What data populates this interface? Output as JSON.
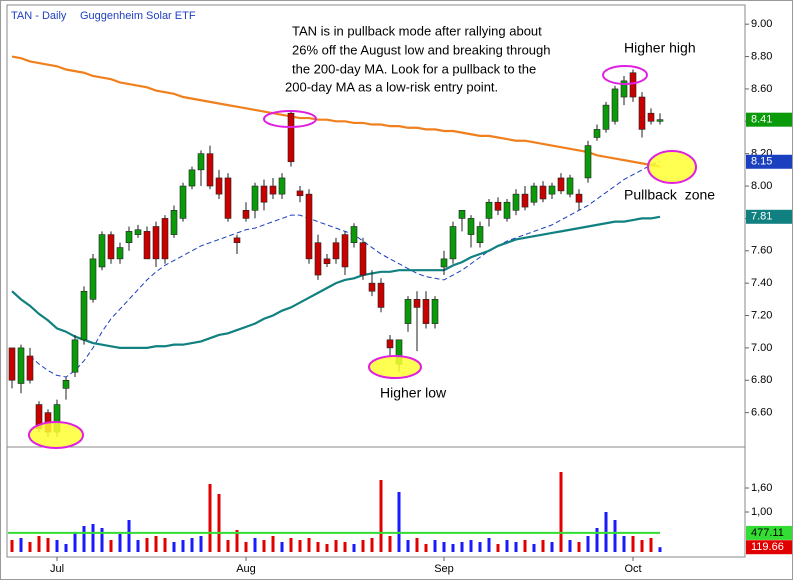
{
  "chart_data": {
    "type": "candlestick",
    "title": "TAN - Daily",
    "subtitle": "Guggenheim Solar ETF",
    "annotation": [
      "TAN is in pullback mode after rallying about",
      "26% off the August low and breaking through",
      "the 200-day MA.  Look for a pullback to the",
      "200-day MA as a low-risk entry point."
    ],
    "callouts": [
      "Higher high",
      "Higher low",
      "Pullback  zone"
    ],
    "categories": [
      null,
      null,
      null,
      null,
      null,
      "Jul",
      null,
      null,
      null,
      null,
      null,
      null,
      null,
      null,
      null,
      null,
      null,
      null,
      null,
      null,
      null,
      null,
      null,
      null,
      null,
      null,
      "Aug",
      null,
      null,
      null,
      null,
      null,
      null,
      null,
      null,
      null,
      null,
      null,
      null,
      null,
      null,
      null,
      null,
      null,
      null,
      null,
      null,
      null,
      "Sep",
      null,
      null,
      null,
      null,
      null,
      null,
      null,
      null,
      null,
      null,
      null,
      null,
      null,
      null,
      null,
      null,
      null,
      null,
      null,
      null,
      "Oct",
      null,
      null,
      null
    ],
    "open": [
      7.0,
      6.78,
      6.95,
      6.65,
      6.6,
      6.48,
      6.75,
      6.85,
      7.05,
      7.3,
      7.5,
      7.7,
      7.55,
      7.65,
      7.7,
      7.72,
      7.75,
      7.8,
      7.7,
      7.8,
      8.0,
      8.1,
      8.2,
      8.05,
      8.05,
      7.68,
      7.85,
      7.85,
      8.0,
      8.0,
      7.95,
      8.45,
      7.97,
      7.95,
      7.65,
      7.55,
      7.65,
      7.7,
      7.65,
      7.65,
      7.4,
      7.4,
      7.05,
      6.9,
      7.15,
      7.3,
      7.3,
      7.15,
      7.5,
      7.55,
      7.8,
      7.7,
      7.65,
      7.8,
      7.9,
      7.8,
      7.85,
      7.95,
      7.9,
      8.0,
      7.95,
      8.05,
      7.95,
      7.95,
      8.05,
      8.3,
      8.35,
      8.4,
      8.55,
      8.7,
      8.55,
      8.45,
      8.4
    ],
    "high": [
      7.0,
      7.02,
      7.0,
      6.67,
      6.62,
      6.68,
      6.82,
      7.08,
      7.38,
      7.58,
      7.72,
      7.72,
      7.65,
      7.75,
      7.76,
      7.75,
      7.78,
      7.82,
      7.88,
      8.02,
      8.12,
      8.22,
      8.25,
      8.1,
      8.08,
      7.7,
      7.9,
      8.02,
      8.04,
      8.05,
      8.08,
      8.47,
      8.0,
      7.98,
      7.7,
      7.58,
      7.68,
      7.72,
      7.77,
      7.68,
      7.48,
      7.43,
      7.08,
      7.05,
      7.32,
      7.35,
      7.35,
      7.32,
      7.6,
      7.78,
      7.85,
      7.82,
      7.78,
      7.92,
      7.93,
      7.92,
      7.98,
      8.0,
      8.02,
      8.03,
      8.02,
      8.08,
      8.07,
      7.98,
      8.28,
      8.38,
      8.52,
      8.62,
      8.68,
      8.72,
      8.58,
      8.48,
      8.45
    ],
    "low": [
      6.75,
      6.72,
      6.78,
      6.48,
      6.45,
      6.45,
      6.68,
      6.82,
      7.02,
      7.28,
      7.48,
      7.52,
      7.52,
      7.6,
      7.68,
      7.55,
      7.5,
      7.52,
      7.68,
      7.78,
      7.98,
      8.0,
      7.98,
      7.92,
      7.78,
      7.58,
      7.78,
      7.8,
      7.85,
      7.92,
      7.92,
      8.12,
      7.9,
      7.52,
      7.42,
      7.5,
      7.52,
      7.45,
      7.62,
      7.42,
      7.32,
      7.22,
      6.95,
      6.85,
      7.1,
      6.98,
      7.12,
      7.12,
      7.45,
      7.52,
      7.72,
      7.62,
      7.62,
      7.75,
      7.82,
      7.78,
      7.82,
      7.85,
      7.88,
      7.9,
      7.92,
      7.95,
      7.93,
      7.85,
      8.02,
      8.28,
      8.33,
      8.38,
      8.5,
      8.52,
      8.3,
      8.38,
      8.38
    ],
    "close": [
      6.8,
      7.0,
      6.8,
      6.5,
      6.48,
      6.65,
      6.8,
      7.05,
      7.35,
      7.55,
      7.7,
      7.55,
      7.62,
      7.72,
      7.73,
      7.55,
      7.55,
      7.55,
      7.85,
      8.0,
      8.1,
      8.2,
      8.0,
      7.95,
      7.8,
      7.65,
      7.8,
      8.0,
      7.9,
      7.95,
      8.05,
      8.15,
      7.94,
      7.55,
      7.45,
      7.52,
      7.55,
      7.5,
      7.75,
      7.45,
      7.35,
      7.25,
      7.0,
      7.05,
      7.3,
      7.25,
      7.15,
      7.3,
      7.55,
      7.75,
      7.85,
      7.8,
      7.75,
      7.9,
      7.85,
      7.9,
      7.95,
      7.87,
      8.0,
      7.92,
      8.0,
      7.97,
      8.05,
      7.9,
      8.25,
      8.35,
      8.5,
      8.6,
      8.65,
      8.55,
      8.35,
      8.4,
      8.41
    ],
    "up_color": "#0a9a0a",
    "down_color": "#c80000",
    "lines": [
      {
        "color": "#f0801e",
        "dash": false,
        "values": [
          8.8,
          8.79,
          8.77,
          8.76,
          8.75,
          8.74,
          8.72,
          8.71,
          8.7,
          8.68,
          8.67,
          8.66,
          8.64,
          8.63,
          8.62,
          8.61,
          8.59,
          8.58,
          8.57,
          8.55,
          8.54,
          8.53,
          8.52,
          8.51,
          8.5,
          8.49,
          8.48,
          8.47,
          8.46,
          8.45,
          8.44,
          8.43,
          8.42,
          8.42,
          8.41,
          8.41,
          8.4,
          8.4,
          8.39,
          8.39,
          8.38,
          8.38,
          8.37,
          8.37,
          8.36,
          8.36,
          8.35,
          8.35,
          8.34,
          8.34,
          8.33,
          8.32,
          8.31,
          8.31,
          8.3,
          8.29,
          8.28,
          8.28,
          8.27,
          8.26,
          8.25,
          8.24,
          8.23,
          8.22,
          8.21,
          8.19,
          8.18,
          8.17,
          8.16,
          8.15,
          8.14,
          8.13,
          8.12
        ]
      },
      {
        "color": "#1a3fbf",
        "dash": true,
        "values": [
          null,
          null,
          6.95,
          6.9,
          6.86,
          6.83,
          6.82,
          6.86,
          6.92,
          7.0,
          7.1,
          7.18,
          7.24,
          7.3,
          7.36,
          7.42,
          7.47,
          7.51,
          7.54,
          7.57,
          7.6,
          7.63,
          7.65,
          7.67,
          7.69,
          7.71,
          7.73,
          7.74,
          7.76,
          7.78,
          7.8,
          7.82,
          7.82,
          7.8,
          7.78,
          7.76,
          7.74,
          7.72,
          7.7,
          7.66,
          7.62,
          7.58,
          7.55,
          7.52,
          7.49,
          7.46,
          7.44,
          7.43,
          7.42,
          7.45,
          7.48,
          7.52,
          7.56,
          7.6,
          7.63,
          7.66,
          7.68,
          7.7,
          7.72,
          7.74,
          7.76,
          7.79,
          7.82,
          7.85,
          7.88,
          7.92,
          7.96,
          8.0,
          8.04,
          8.07,
          8.1,
          8.13,
          8.15
        ]
      },
      {
        "color": "#108080",
        "dash": false,
        "values": [
          7.35,
          7.3,
          7.26,
          7.21,
          7.17,
          7.12,
          7.1,
          7.07,
          7.05,
          7.03,
          7.02,
          7.01,
          7.0,
          7.0,
          7.0,
          7.0,
          7.01,
          7.01,
          7.02,
          7.02,
          7.03,
          7.04,
          7.06,
          7.08,
          7.09,
          7.11,
          7.13,
          7.15,
          7.18,
          7.2,
          7.23,
          7.25,
          7.28,
          7.31,
          7.34,
          7.37,
          7.4,
          7.42,
          7.43,
          7.45,
          7.46,
          7.47,
          7.47,
          7.48,
          7.48,
          7.48,
          7.48,
          7.48,
          7.48,
          7.51,
          7.53,
          7.56,
          7.58,
          7.6,
          7.63,
          7.65,
          7.67,
          7.68,
          7.69,
          7.7,
          7.71,
          7.72,
          7.73,
          7.74,
          7.75,
          7.76,
          7.77,
          7.78,
          7.78,
          7.79,
          7.8,
          7.8,
          7.81
        ]
      }
    ],
    "volume": [
      300,
      350,
      250,
      400,
      350,
      300,
      200,
      500,
      650,
      700,
      600,
      300,
      450,
      800,
      300,
      350,
      400,
      350,
      250,
      300,
      350,
      400,
      1700,
      1450,
      300,
      550,
      250,
      350,
      300,
      400,
      250,
      350,
      300,
      350,
      250,
      200,
      300,
      250,
      200,
      300,
      350,
      1800,
      400,
      1500,
      300,
      350,
      200,
      300,
      250,
      200,
      250,
      300,
      250,
      350,
      200,
      300,
      250,
      300,
      200,
      300,
      250,
      2000,
      300,
      250,
      400,
      600,
      1000,
      800,
      400,
      400,
      300,
      350,
      119.66
    ],
    "volume_up_color": "#1a1aff",
    "volume_down_color": "#e00000",
    "volume_ma": 477.11,
    "volume_ma_color": "#33dd33",
    "ylim": [
      6.4,
      9.1
    ],
    "yticks": [
      {
        "value": 6.6,
        "label": "6.60"
      },
      {
        "value": 6.8,
        "label": "6.80"
      },
      {
        "value": 7.0,
        "label": "7.00"
      },
      {
        "value": 7.2,
        "label": "7.20"
      },
      {
        "value": 7.4,
        "label": "7.40"
      },
      {
        "value": 7.6,
        "label": "7.60"
      },
      {
        "value": 7.8,
        "label": "7.80"
      },
      {
        "value": 8.0,
        "label": "8.00"
      },
      {
        "value": 8.2,
        "label": "8.20"
      },
      {
        "value": 8.4,
        "label": "8.40"
      },
      {
        "value": 8.6,
        "label": "8.60"
      },
      {
        "value": 8.8,
        "label": "8.80"
      },
      {
        "value": 9.0,
        "label": "9.00"
      }
    ],
    "vol_ylim": [
      0,
      2500
    ],
    "vol_yticks": [
      {
        "value": 1000,
        "label": "1,00"
      },
      {
        "value": 1600,
        "label": "1,60"
      }
    ],
    "grid": false
  }
}
